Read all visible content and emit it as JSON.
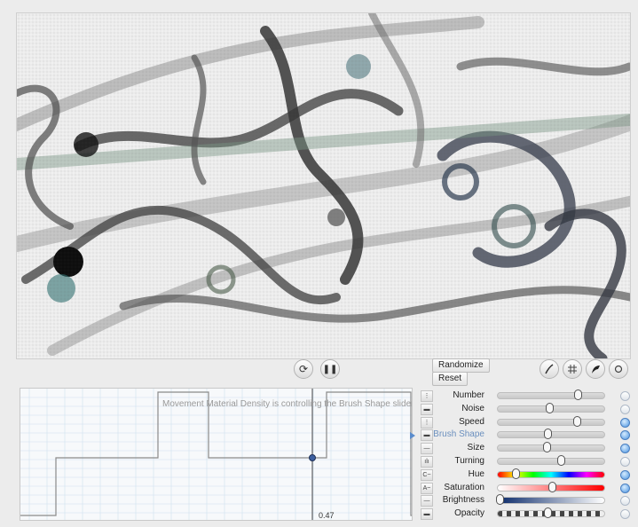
{
  "transport": {
    "refresh_icon": "refresh-icon",
    "pause_icon": "pause-icon"
  },
  "buttons": {
    "randomize": "Randomize",
    "reset": "Reset"
  },
  "tools": [
    "brush-tool-icon",
    "grid-tool-icon",
    "curve-tool-icon",
    "circle-tool-icon"
  ],
  "graph": {
    "message": "Movement Material Density is controlling the Brush Shape slider",
    "value": "0.47"
  },
  "params": [
    {
      "label": "Number",
      "value": 0.75,
      "active": false,
      "dot": false,
      "track": "gray"
    },
    {
      "label": "Noise",
      "value": 0.48,
      "active": false,
      "dot": false,
      "track": "gray"
    },
    {
      "label": "Speed",
      "value": 0.74,
      "active": false,
      "dot": true,
      "track": "gray"
    },
    {
      "label": "Brush Shape",
      "value": 0.47,
      "active": true,
      "dot": true,
      "track": "gray"
    },
    {
      "label": "Size",
      "value": 0.46,
      "active": false,
      "dot": true,
      "track": "gray"
    },
    {
      "label": "Turning",
      "value": 0.59,
      "active": false,
      "dot": false,
      "track": "gray"
    },
    {
      "label": "Hue",
      "value": 0.17,
      "active": false,
      "dot": true,
      "track": "hue"
    },
    {
      "label": "Saturation",
      "value": 0.51,
      "active": false,
      "dot": true,
      "track": "sat"
    },
    {
      "label": "Brightness",
      "value": 0.02,
      "active": false,
      "dot": false,
      "track": "bright"
    },
    {
      "label": "Opacity",
      "value": 0.47,
      "active": false,
      "dot": false,
      "track": "checker"
    }
  ],
  "colors": {
    "accent": "#5a8ccc",
    "graph_line": "#8a8a8a",
    "grid": "#cfe0ee"
  }
}
